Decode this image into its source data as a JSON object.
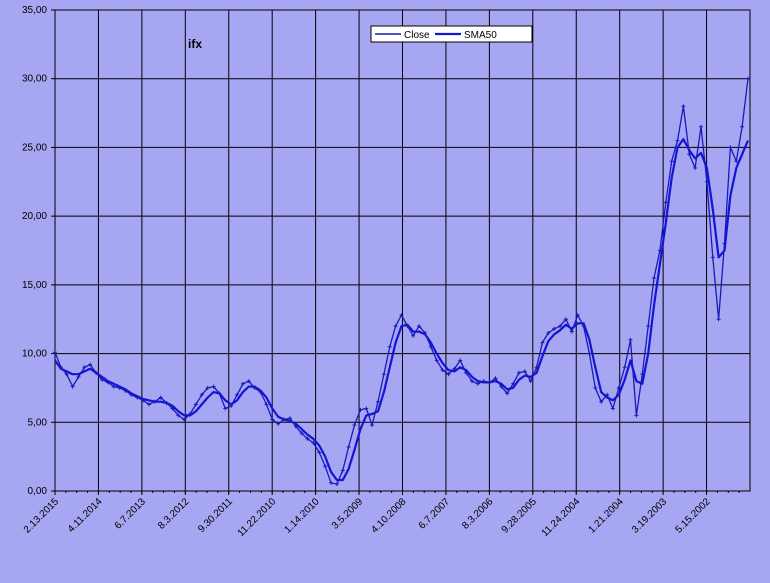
{
  "chart_data": {
    "type": "line",
    "title": "ifx",
    "xlabel": "",
    "ylabel": "",
    "ylim": [
      0,
      35
    ],
    "y_ticks": [
      "0,00",
      "5,00",
      "10,00",
      "15,00",
      "20,00",
      "25,00",
      "30,00",
      "35,00"
    ],
    "x_tick_labels": [
      "2.13.2015",
      "4.11.2014",
      "6.7.2013",
      "8.3.2012",
      "9.30.2011",
      "11.22.2010",
      "1.14.2010",
      "3.5.2009",
      "4.10.2008",
      "6.7.2007",
      "8.3.2006",
      "9.28.2005",
      "11.24.2004",
      "1.21.2004",
      "3.19.2003",
      "5.15.2002"
    ],
    "x_axis_note": "dates run newest (left) to oldest (right)",
    "grid": true,
    "legend_position": "top-center",
    "colors": {
      "background": "#a6a6f2",
      "close": "#1a1ab8",
      "sma50": "#1414d8",
      "grid": "#000000"
    },
    "series": [
      {
        "name": "Close",
        "marker": "small-cross",
        "values": [
          10.1,
          9.0,
          8.5,
          7.6,
          8.3,
          9.0,
          9.2,
          8.6,
          8.1,
          7.9,
          7.6,
          7.5,
          7.3,
          7.0,
          6.8,
          6.6,
          6.3,
          6.5,
          6.8,
          6.4,
          6.0,
          5.5,
          5.2,
          5.6,
          6.3,
          7.0,
          7.5,
          7.6,
          7.1,
          6.0,
          6.2,
          7.0,
          7.8,
          8.0,
          7.5,
          7.2,
          6.3,
          5.2,
          4.9,
          5.2,
          5.3,
          4.7,
          4.2,
          3.8,
          3.5,
          2.8,
          1.8,
          0.6,
          0.5,
          1.5,
          3.2,
          4.8,
          5.9,
          6.0,
          4.8,
          6.5,
          8.5,
          10.5,
          12.0,
          12.8,
          12.0,
          11.3,
          12.0,
          11.5,
          10.5,
          9.5,
          8.8,
          8.5,
          8.9,
          9.5,
          8.6,
          8.0,
          7.8,
          8.0,
          7.9,
          8.2,
          7.6,
          7.1,
          7.8,
          8.6,
          8.7,
          8.0,
          9.0,
          10.8,
          11.5,
          11.8,
          12.0,
          12.5,
          11.6,
          12.8,
          12.0,
          10.0,
          7.5,
          6.5,
          7.0,
          6.0,
          7.5,
          9.0,
          11.0,
          5.5,
          8.5,
          12.0,
          15.5,
          17.5,
          21.0,
          24.0,
          25.5,
          28.0,
          24.5,
          23.5,
          26.5,
          22.5,
          17.0,
          12.5,
          18.0,
          25.0,
          24.0,
          26.5,
          30.0
        ]
      },
      {
        "name": "SMA50",
        "marker": "none",
        "values": [
          9.5,
          8.9,
          8.7,
          8.5,
          8.5,
          8.7,
          8.9,
          8.6,
          8.3,
          8.0,
          7.8,
          7.6,
          7.4,
          7.1,
          6.9,
          6.7,
          6.6,
          6.5,
          6.5,
          6.4,
          6.2,
          5.8,
          5.5,
          5.5,
          5.8,
          6.3,
          6.8,
          7.2,
          7.1,
          6.6,
          6.3,
          6.6,
          7.2,
          7.6,
          7.6,
          7.3,
          6.8,
          6.0,
          5.4,
          5.2,
          5.1,
          4.9,
          4.5,
          4.1,
          3.8,
          3.3,
          2.5,
          1.4,
          0.8,
          0.8,
          1.6,
          3.0,
          4.5,
          5.5,
          5.6,
          5.8,
          7.2,
          9.0,
          10.8,
          12.0,
          12.1,
          11.6,
          11.6,
          11.4,
          10.8,
          10.0,
          9.3,
          8.8,
          8.7,
          9.0,
          8.8,
          8.3,
          8.0,
          7.9,
          7.9,
          8.0,
          7.8,
          7.4,
          7.5,
          8.1,
          8.4,
          8.3,
          8.6,
          9.8,
          10.9,
          11.4,
          11.7,
          12.1,
          11.8,
          12.2,
          12.2,
          11.0,
          9.0,
          7.2,
          6.8,
          6.6,
          7.0,
          8.1,
          9.5,
          8.0,
          7.8,
          10.0,
          13.5,
          16.5,
          19.5,
          22.8,
          25.0,
          25.6,
          24.8,
          24.2,
          24.6,
          23.5,
          20.5,
          17.0,
          17.5,
          21.5,
          23.5,
          24.5,
          25.5
        ]
      }
    ]
  }
}
